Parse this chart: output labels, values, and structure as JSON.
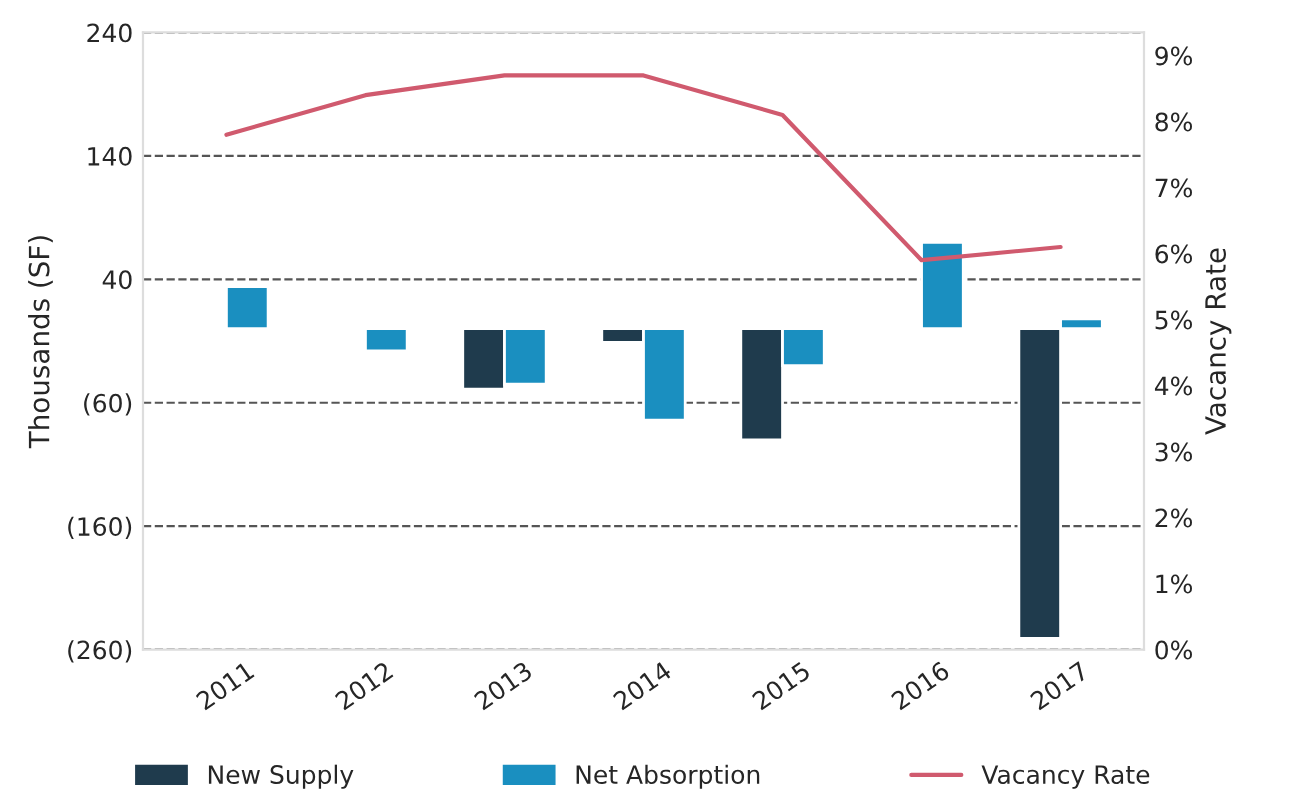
{
  "chart_data": {
    "type": "bar",
    "categories": [
      "2011",
      "2012",
      "2013",
      "2014",
      "2015",
      "2016",
      "2017"
    ],
    "ylabel": "Thousands (SF)",
    "y2label": "Vacancy Rate",
    "series": [
      {
        "name": "New Supply",
        "color": "#1f3b4d",
        "values": [
          null,
          null,
          -49,
          -11,
          -90,
          null,
          -251
        ]
      },
      {
        "name": "Net Absorption",
        "color": "#1a8fc0",
        "values": [
          34,
          -18,
          -45,
          -74,
          -30,
          70,
          8
        ]
      },
      {
        "name": "Vacancy Rate",
        "type": "line",
        "axis": "y2",
        "color": "#d05a6e",
        "values": [
          7.8,
          8.4,
          8.7,
          8.7,
          8.1,
          5.9,
          6.1
        ]
      }
    ],
    "ylim": [
      -260,
      240
    ],
    "yticks": [
      {
        "value": -260,
        "label": "(260)"
      },
      {
        "value": -160,
        "label": "(160)"
      },
      {
        "value": -60,
        "label": "(60)"
      },
      40,
      140,
      240
    ],
    "y2lim": [
      0,
      9.35
    ],
    "y2ticks": [
      {
        "value": 0,
        "label": "0%"
      },
      {
        "value": 1,
        "label": "1%"
      },
      {
        "value": 2,
        "label": "2%"
      },
      {
        "value": 3,
        "label": "3%"
      },
      {
        "value": 4,
        "label": "4%"
      },
      {
        "value": 5,
        "label": "5%"
      },
      {
        "value": 6,
        "label": "6%"
      },
      {
        "value": 7,
        "label": "7%"
      },
      {
        "value": 8,
        "label": "8%"
      },
      {
        "value": 9,
        "label": "9%"
      }
    ],
    "grid": "y",
    "legend": "bottom"
  }
}
